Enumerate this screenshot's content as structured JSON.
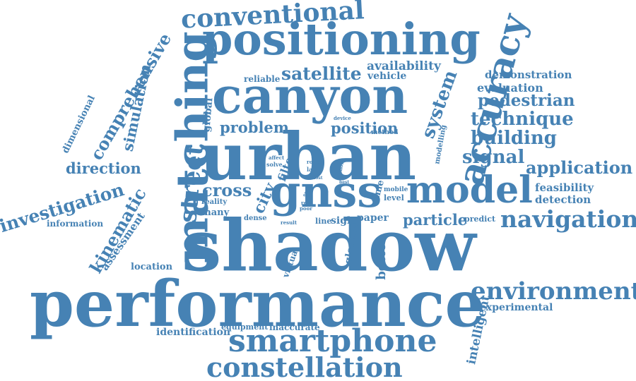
{
  "cloud": {
    "color": "#4682b4",
    "words": {
      "shadow": "shadow",
      "performance": "performance",
      "urban": "urban",
      "canyon": "canyon",
      "positioning": "positioning",
      "gnss": "gnss",
      "matching": "matching",
      "model": "model",
      "accuracy": "accuracy",
      "smartphone": "smartphone",
      "constellation": "constellation",
      "environment": "environment",
      "navigation": "navigation",
      "conventional": "conventional",
      "street": "street",
      "satellite": "satellite",
      "technique": "technique",
      "building": "building",
      "pedestrian": "pedestrian",
      "signal": "signal",
      "application": "application",
      "system": "system",
      "investigation": "investigation",
      "direction": "direction",
      "comprehensive": "comprehensive",
      "kinematic": "kinematic",
      "simulation": "simulation",
      "cross": "cross",
      "problem": "problem",
      "position": "position",
      "particle": "particle",
      "evaluation": "evaluation",
      "demonstration": "demonstration",
      "availability": "availability",
      "vehicle": "vehicle",
      "feasibility": "feasibility",
      "detection": "detection",
      "experimental": "experimental",
      "intelligent": "intelligent",
      "identification": "identification",
      "equipment": "equipment",
      "inaccurate": "inaccurate",
      "assessment": "assessment",
      "location": "location",
      "information": "information",
      "dimensional": "dimensional",
      "global": "global",
      "reliable": "reliable",
      "many": "many",
      "city": "city",
      "dense": "dense",
      "reality": "reality",
      "virtual": "virtual",
      "sight": "sight",
      "paper": "paper",
      "line": "line",
      "glonass": "glonass",
      "better": "better",
      "level": "level",
      "predict": "predict",
      "filter": "filter",
      "time": "time",
      "method": "method",
      "modelling": "modelling",
      "device": "device",
      "affect": "affect",
      "solve": "solve",
      "route": "route",
      "lane": "lane",
      "london": "london",
      "mobile": "mobile",
      "real": "real",
      "poor": "poor",
      "result": "result",
      "user": "user",
      "best": "best",
      "most": "most",
      "error": "error"
    }
  }
}
